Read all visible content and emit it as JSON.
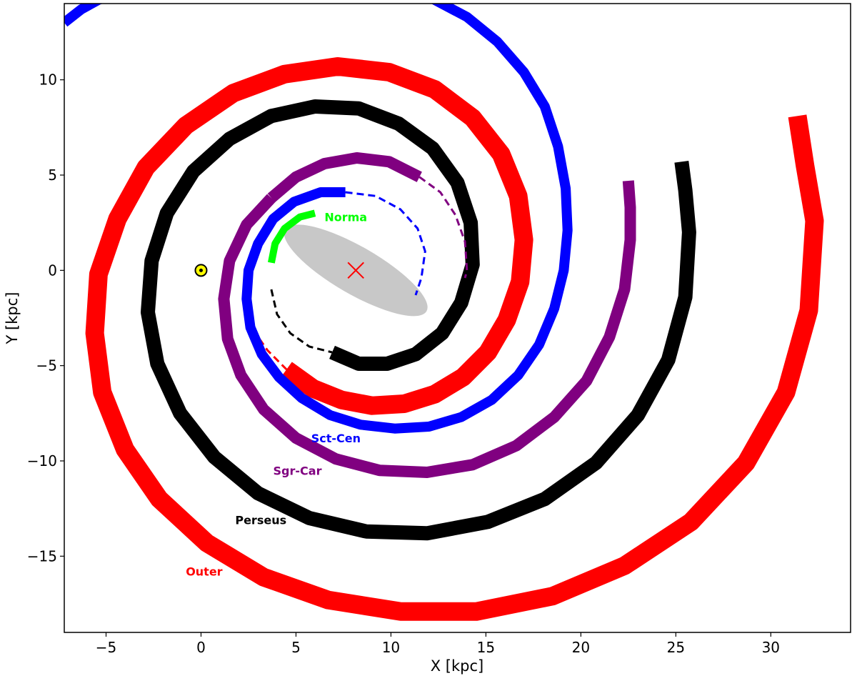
{
  "chart_data": {
    "type": "line",
    "title": "",
    "xlabel": "X [kpc]",
    "ylabel": "Y [kpc]",
    "xlim": [
      -7.2,
      34.2
    ],
    "ylim": [
      -19.0,
      14.0
    ],
    "x_ticks": [
      -5,
      0,
      5,
      10,
      15,
      20,
      25,
      30
    ],
    "y_ticks": [
      10,
      5,
      0,
      -5,
      -10,
      -15
    ],
    "x_tick_labels": [
      "−5",
      "0",
      "5",
      "10",
      "15",
      "20",
      "25",
      "30"
    ],
    "y_tick_labels": [
      "10",
      "5",
      "0",
      "−5",
      "−10",
      "−15"
    ],
    "grid": false,
    "galactic_center": [
      8.15,
      0
    ],
    "sun": [
      0,
      0
    ],
    "bar": {
      "center": [
        8.15,
        0
      ],
      "semi_major": 4.3,
      "semi_minor": 1.0,
      "angle_deg": -30,
      "color": "#c8c8c8"
    },
    "series": [
      {
        "name": "Outer",
        "color": "#ff0000",
        "solid": [
          [
            4.5,
            -5.2
          ],
          [
            5.9,
            -6.2
          ],
          [
            7.4,
            -6.8
          ],
          [
            9.0,
            -7.1
          ],
          [
            10.7,
            -7.0
          ],
          [
            12.3,
            -6.5
          ],
          [
            13.8,
            -5.6
          ],
          [
            15.1,
            -4.3
          ],
          [
            16.1,
            -2.6
          ],
          [
            16.8,
            -0.6
          ],
          [
            17.0,
            1.6
          ],
          [
            16.7,
            3.9
          ],
          [
            15.8,
            6.1
          ],
          [
            14.3,
            8.0
          ],
          [
            12.3,
            9.5
          ],
          [
            9.9,
            10.4
          ],
          [
            7.2,
            10.7
          ],
          [
            4.4,
            10.3
          ],
          [
            1.7,
            9.3
          ],
          [
            -0.8,
            7.6
          ],
          [
            -2.9,
            5.4
          ],
          [
            -4.4,
            2.7
          ],
          [
            -5.4,
            -0.2
          ],
          [
            -5.6,
            -3.3
          ],
          [
            -5.2,
            -6.4
          ],
          [
            -4.0,
            -9.4
          ],
          [
            -2.2,
            -12.0
          ],
          [
            0.3,
            -14.3
          ],
          [
            3.3,
            -16.1
          ],
          [
            6.7,
            -17.3
          ],
          [
            10.5,
            -17.9
          ],
          [
            14.5,
            -17.9
          ],
          [
            18.5,
            -17.1
          ],
          [
            22.3,
            -15.5
          ],
          [
            25.8,
            -13.2
          ],
          [
            28.7,
            -10.1
          ],
          [
            30.8,
            -6.4
          ],
          [
            32.0,
            -2.1
          ],
          [
            32.3,
            2.6
          ],
          [
            31.8,
            5.5
          ],
          [
            31.4,
            8.1
          ]
        ],
        "dashed": [
          [
            2.6,
            -1.9
          ],
          [
            2.8,
            -3.2
          ],
          [
            3.5,
            -4.2
          ],
          [
            4.5,
            -5.2
          ]
        ],
        "label_text": "Outer",
        "label_pos": [
          -0.8,
          -15.8
        ]
      },
      {
        "name": "Perseus",
        "color": "#000000",
        "solid": [
          [
            6.9,
            -4.3
          ],
          [
            8.3,
            -4.9
          ],
          [
            9.8,
            -4.9
          ],
          [
            11.3,
            -4.4
          ],
          [
            12.7,
            -3.3
          ],
          [
            13.7,
            -1.7
          ],
          [
            14.3,
            0.3
          ],
          [
            14.2,
            2.5
          ],
          [
            13.5,
            4.6
          ],
          [
            12.2,
            6.4
          ],
          [
            10.4,
            7.7
          ],
          [
            8.3,
            8.5
          ],
          [
            6.0,
            8.6
          ],
          [
            3.7,
            8.1
          ],
          [
            1.5,
            6.9
          ],
          [
            -0.4,
            5.2
          ],
          [
            -1.8,
            3.0
          ],
          [
            -2.6,
            0.5
          ],
          [
            -2.8,
            -2.2
          ],
          [
            -2.3,
            -4.9
          ],
          [
            -1.1,
            -7.5
          ],
          [
            0.7,
            -9.8
          ],
          [
            3.0,
            -11.7
          ],
          [
            5.7,
            -13.0
          ],
          [
            8.7,
            -13.7
          ],
          [
            11.9,
            -13.8
          ],
          [
            15.1,
            -13.2
          ],
          [
            18.1,
            -12.0
          ],
          [
            20.8,
            -10.1
          ],
          [
            23.0,
            -7.6
          ],
          [
            24.6,
            -4.7
          ],
          [
            25.5,
            -1.4
          ],
          [
            25.7,
            2.0
          ],
          [
            25.5,
            4.2
          ],
          [
            25.3,
            5.7
          ]
        ],
        "dashed": [
          [
            3.7,
            -1.0
          ],
          [
            4.0,
            -2.3
          ],
          [
            4.7,
            -3.3
          ],
          [
            5.7,
            -4.0
          ],
          [
            6.9,
            -4.3
          ]
        ],
        "label_text": "Perseus",
        "label_pos": [
          1.8,
          -13.1
        ]
      },
      {
        "name": "Sgr-Car",
        "color": "#800080",
        "solid": [
          [
            3.7,
            3.8
          ],
          [
            5.0,
            4.9
          ],
          [
            6.5,
            5.6
          ],
          [
            8.2,
            5.9
          ],
          [
            9.9,
            5.7
          ],
          [
            11.5,
            4.9
          ]
        ],
        "solid2": [
          [
            3.7,
            3.8
          ],
          [
            2.4,
            2.4
          ],
          [
            1.5,
            0.5
          ],
          [
            1.2,
            -1.5
          ],
          [
            1.4,
            -3.6
          ],
          [
            2.1,
            -5.5
          ],
          [
            3.3,
            -7.3
          ],
          [
            5.0,
            -8.8
          ],
          [
            7.1,
            -9.9
          ],
          [
            9.4,
            -10.5
          ],
          [
            11.9,
            -10.6
          ],
          [
            14.3,
            -10.2
          ],
          [
            16.6,
            -9.2
          ],
          [
            18.6,
            -7.7
          ],
          [
            20.3,
            -5.8
          ],
          [
            21.5,
            -3.5
          ],
          [
            22.3,
            -1.0
          ],
          [
            22.6,
            1.6
          ],
          [
            22.6,
            3.3
          ],
          [
            22.5,
            4.7
          ]
        ],
        "dashed": [
          [
            11.5,
            4.9
          ],
          [
            12.6,
            4.1
          ],
          [
            13.4,
            2.9
          ],
          [
            13.9,
            1.5
          ],
          [
            14.0,
            0.0
          ],
          [
            13.9,
            -0.4
          ]
        ],
        "label_text": "Sgr-Car",
        "label_pos": [
          3.8,
          -10.5
        ]
      },
      {
        "name": "Sct-Cen",
        "color": "#0000ff",
        "solid": [
          [
            7.6,
            4.1
          ],
          [
            6.3,
            4.1
          ],
          [
            4.9,
            3.6
          ],
          [
            3.8,
            2.7
          ],
          [
            3.0,
            1.4
          ],
          [
            2.5,
            0.0
          ],
          [
            2.4,
            -1.5
          ],
          [
            2.6,
            -3.0
          ],
          [
            3.2,
            -4.4
          ],
          [
            4.1,
            -5.6
          ],
          [
            5.3,
            -6.7
          ],
          [
            6.8,
            -7.6
          ],
          [
            8.4,
            -8.1
          ],
          [
            10.2,
            -8.3
          ],
          [
            12.0,
            -8.2
          ],
          [
            13.7,
            -7.7
          ],
          [
            15.3,
            -6.8
          ],
          [
            16.7,
            -5.5
          ],
          [
            17.8,
            -3.9
          ],
          [
            18.6,
            -2.0
          ],
          [
            19.1,
            0.0
          ],
          [
            19.3,
            2.1
          ],
          [
            19.2,
            4.3
          ],
          [
            18.8,
            6.5
          ],
          [
            18.1,
            8.6
          ],
          [
            17.0,
            10.4
          ],
          [
            15.6,
            12.0
          ],
          [
            14.0,
            13.3
          ],
          [
            12.1,
            14.3
          ]
        ],
        "solid_extra": [
          [
            -7.2,
            13.0
          ],
          [
            -6.3,
            13.7
          ],
          [
            -5.4,
            14.2
          ],
          [
            -4.7,
            14.4
          ]
        ],
        "dashed": [
          [
            7.6,
            4.1
          ],
          [
            9.2,
            3.9
          ],
          [
            10.5,
            3.2
          ],
          [
            11.4,
            2.2
          ],
          [
            11.8,
            1.0
          ],
          [
            11.6,
            -0.4
          ],
          [
            11.3,
            -1.3
          ]
        ],
        "label_text": "Sct-Cen",
        "label_pos": [
          5.8,
          -8.8
        ]
      },
      {
        "name": "Norma",
        "color": "#00ff00",
        "solid": [
          [
            3.7,
            0.4
          ],
          [
            3.9,
            1.4
          ],
          [
            4.4,
            2.2
          ],
          [
            5.2,
            2.8
          ],
          [
            6.0,
            3.0
          ]
        ],
        "dashed": [],
        "label_text": "Norma",
        "label_pos": [
          6.5,
          2.8
        ]
      }
    ],
    "label_colors": {
      "Norma": "#00ff00",
      "Sct-Cen": "#0000ff",
      "Sgr-Car": "#800080",
      "Perseus": "#000000",
      "Outer": "#ff0000"
    },
    "stroke_widths": {
      "Outer": 26,
      "Perseus": 20,
      "Sgr-Car": 16,
      "Sct-Cen": 14,
      "Norma": 10
    }
  }
}
